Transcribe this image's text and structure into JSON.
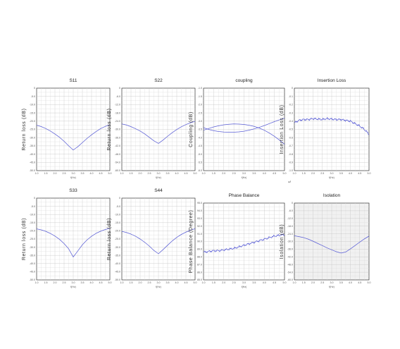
{
  "chart_data": [
    {
      "type": "line",
      "title": "S11",
      "ylabel": "Return loss (dB)",
      "xlabel": "f(Hz)",
      "x": [
        0,
        1,
        2,
        3,
        4,
        5,
        6,
        7,
        8,
        9,
        10,
        11,
        12,
        13,
        14,
        15,
        16
      ],
      "series": [
        {
          "values": [
            -22.5,
            -23.3,
            -24.5,
            -26,
            -27.8,
            -29.8,
            -32.2,
            -35,
            -37.5,
            -35.5,
            -33,
            -30.5,
            -28.3,
            -26.3,
            -24.5,
            -23.2,
            -22.2
          ]
        }
      ],
      "ylim": [
        -50,
        0
      ],
      "yticks": [
        "0",
        "-5.0",
        "-10.0",
        "-15.0",
        "-20.0",
        "-25.0",
        "-30.0",
        "-35.0",
        "-40.0",
        "-45.0",
        "-50.0"
      ],
      "xticks": [
        "1.0",
        "1.5",
        "2.0",
        "2.5",
        "3.0",
        "3.5",
        "4.0",
        "4.5",
        "5.0"
      ],
      "grid": true
    },
    {
      "type": "line",
      "title": "S22",
      "ylabel": "Return loss (dB)",
      "xlabel": "f(Hz)",
      "x": [
        0,
        1,
        2,
        3,
        4,
        5,
        6,
        7,
        8,
        9,
        10,
        11,
        12,
        13,
        14,
        15,
        16
      ],
      "series": [
        {
          "values": [
            -26,
            -26.8,
            -28,
            -29.5,
            -31.2,
            -33.3,
            -35.8,
            -38.3,
            -40.2,
            -37.8,
            -35,
            -32.4,
            -30.1,
            -28.1,
            -26.5,
            -25.2,
            -24.2
          ]
        }
      ],
      "ylim": [
        -60,
        0
      ],
      "yticks": [
        "0",
        "-6.0",
        "-12.0",
        "-18.0",
        "-24.0",
        "-30.0",
        "-36.0",
        "-42.0",
        "-48.0",
        "-54.0",
        "-60.0"
      ],
      "xticks": [
        "1.0",
        "1.5",
        "2.0",
        "2.5",
        "3.0",
        "3.5",
        "4.0",
        "4.5",
        "5.0"
      ],
      "grid": true
    },
    {
      "type": "line",
      "title": "coupling",
      "ylabel": "Coupling (dB)",
      "xlabel": "f(Hz)",
      "x": [
        0,
        1,
        2,
        3,
        4,
        5,
        6,
        7,
        8,
        9,
        10,
        11,
        12,
        13,
        14,
        15,
        16
      ],
      "series": [
        {
          "values": [
            -3.55,
            -3.45,
            -3.35,
            -3.28,
            -3.22,
            -3.19,
            -3.17,
            -3.18,
            -3.2,
            -3.25,
            -3.32,
            -3.42,
            -3.55,
            -3.72,
            -3.92,
            -4.15,
            -4.4
          ]
        },
        {
          "values": [
            -3.4,
            -3.5,
            -3.58,
            -3.63,
            -3.66,
            -3.67,
            -3.67,
            -3.65,
            -3.61,
            -3.55,
            -3.47,
            -3.38,
            -3.27,
            -3.15,
            -3.03,
            -2.92,
            -2.82
          ]
        }
      ],
      "ylim": [
        -6,
        -1
      ],
      "yticks": [
        "-1.0",
        "-1.5",
        "-2.0",
        "-2.5",
        "-3.0",
        "-3.5",
        "-4.0",
        "-4.5",
        "-5.0",
        "-5.5",
        "-6.0"
      ],
      "xticks": [
        "1.0",
        "1.5",
        "2.0",
        "2.5",
        "3.0",
        "3.5",
        "4.0",
        "4.5",
        "5.0"
      ],
      "grid": true
    },
    {
      "type": "line",
      "title": "Insertion Loss",
      "ylabel": "Insertion Loss (dB)",
      "xlabel": "f(Hz)",
      "x": [
        0,
        1,
        2,
        3,
        4,
        5,
        6,
        7,
        8,
        9,
        10,
        11,
        12,
        13,
        14,
        15,
        16
      ],
      "series": [
        {
          "values": [
            -0.42,
            -0.39,
            -0.38,
            -0.38,
            -0.37,
            -0.375,
            -0.38,
            -0.37,
            -0.375,
            -0.38,
            -0.38,
            -0.39,
            -0.4,
            -0.43,
            -0.46,
            -0.5,
            -0.56
          ]
        }
      ],
      "ylim": [
        -1,
        0
      ],
      "yticks": [
        "0",
        "-0.1",
        "-0.2",
        "-0.3",
        "-0.4",
        "-0.5",
        "-0.6",
        "-0.7",
        "-0.8",
        "-0.9",
        "-1.0"
      ],
      "xticks": [
        "1.0",
        "1.5",
        "2.0",
        "2.5",
        "3.0",
        "3.5",
        "4.0",
        "4.5",
        "5.0"
      ],
      "grid": true,
      "noisy": true
    },
    {
      "type": "line",
      "title": "S33",
      "ylabel": "Return loss (dB)",
      "xlabel": "f(Hz)",
      "x": [
        0,
        1,
        2,
        3,
        4,
        5,
        6,
        7,
        8,
        9,
        10,
        11,
        12,
        13,
        14,
        15,
        16
      ],
      "series": [
        {
          "values": [
            -18.8,
            -19.4,
            -20.3,
            -21.6,
            -23.2,
            -25.2,
            -27.8,
            -31,
            -36,
            -32.3,
            -28.5,
            -25.6,
            -23.3,
            -21.5,
            -20.2,
            -19.2,
            -18.5
          ]
        }
      ],
      "ylim": [
        -50,
        0
      ],
      "yticks": [
        "0",
        "-5.0",
        "-10.0",
        "-15.0",
        "-20.0",
        "-25.0",
        "-30.0",
        "-35.0",
        "-40.0",
        "-45.0",
        "-50.0"
      ],
      "xticks": [
        "1.0",
        "1.5",
        "2.0",
        "2.5",
        "3.0",
        "3.5",
        "4.0",
        "4.5",
        "5.0"
      ],
      "grid": true
    },
    {
      "type": "line",
      "title": "S44",
      "ylabel": "Return loss (dB)",
      "xlabel": "f(Hz)",
      "x": [
        0,
        1,
        2,
        3,
        4,
        5,
        6,
        7,
        8,
        9,
        10,
        11,
        12,
        13,
        14,
        15,
        16
      ],
      "series": [
        {
          "values": [
            -20.3,
            -21,
            -22,
            -23.3,
            -25,
            -27,
            -29.3,
            -32,
            -34,
            -31.5,
            -28.8,
            -26.2,
            -24,
            -22.2,
            -20.8,
            -19.6,
            -18.7
          ]
        }
      ],
      "ylim": [
        -50,
        0
      ],
      "yticks": [
        "0",
        "-5.0",
        "-10.0",
        "-15.0",
        "-20.0",
        "-25.0",
        "-30.0",
        "-35.0",
        "-40.0",
        "-45.0",
        "-50.0"
      ],
      "xticks": [
        "1.0",
        "1.5",
        "2.0",
        "2.5",
        "3.0",
        "3.5",
        "4.0",
        "4.5",
        "5.0"
      ],
      "grid": true
    },
    {
      "type": "line",
      "title": "Phase Balance",
      "ylabel": "Phase Balance (Degree)",
      "xlabel": "f(Hz)",
      "x": [
        0,
        1,
        2,
        3,
        4,
        5,
        6,
        7,
        8,
        9,
        10,
        11,
        12,
        13,
        14,
        15,
        16
      ],
      "series": [
        {
          "values": [
            88.6,
            88.7,
            88.8,
            88.8,
            88.9,
            89.0,
            89.1,
            89.3,
            89.5,
            89.7,
            89.9,
            90.1,
            90.3,
            90.5,
            90.7,
            90.8,
            90.9
          ]
        }
      ],
      "ylim": [
        85,
        95
      ],
      "yticks": [
        "95.0",
        "94.0",
        "93.0",
        "92.0",
        "91.0",
        "90.0",
        "89.0",
        "88.0",
        "87.0",
        "86.0",
        "85.0"
      ],
      "xticks": [
        "1.0",
        "1.5",
        "2.0",
        "2.5",
        "3.0",
        "3.5",
        "4.0",
        "4.5",
        "5.0"
      ],
      "grid": true,
      "noisy": true
    },
    {
      "type": "line",
      "title": "Isolation",
      "ylabel": "Isolation (dB)",
      "xlabel": "f(Hz)",
      "x": [
        0,
        1,
        2,
        3,
        4,
        5,
        6,
        7,
        8,
        9,
        10,
        11,
        12,
        13,
        14,
        15,
        16
      ],
      "series": [
        {
          "values": [
            -25.5,
            -26.2,
            -27,
            -28.2,
            -29.8,
            -31.5,
            -33.2,
            -35,
            -36.5,
            -38,
            -39,
            -38.2,
            -35.8,
            -33.2,
            -30.5,
            -28,
            -25.8
          ]
        }
      ],
      "ylim": [
        -60,
        0
      ],
      "yticks": [
        "0",
        "-6.0",
        "-12.0",
        "-18.0",
        "-24.0",
        "-30.0",
        "-36.0",
        "-42.0",
        "-48.0",
        "-54.0",
        "-60.0"
      ],
      "xticks": [
        "1.0",
        "1.5",
        "2.0",
        "2.5",
        "3.0",
        "3.5",
        "4.0",
        "4.5",
        "5.0"
      ],
      "grid": true
    }
  ],
  "stray_mark": "↵"
}
